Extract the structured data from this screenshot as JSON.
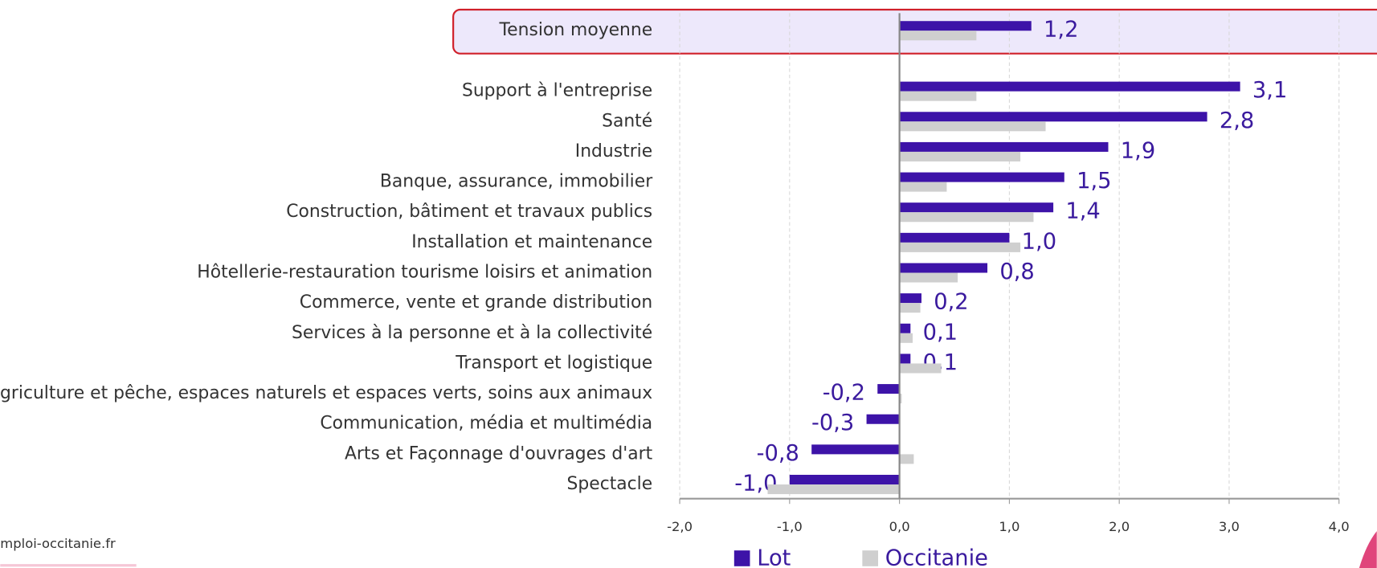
{
  "chart_data": {
    "type": "hbar",
    "categories": [
      "Tension moyenne",
      "Support à l'entreprise",
      "Santé",
      "Industrie",
      "Banque, assurance, immobilier",
      "Construction, bâtiment et travaux publics",
      "Installation et maintenance",
      "Hôtellerie-restauration tourisme loisirs et animation",
      "Commerce, vente et grande distribution",
      "Services à la personne et à la collectivité",
      "Transport et logistique",
      "Agriculture et pêche, espaces naturels et espaces verts, soins aux animaux",
      "Communication, média et multimédia",
      "Arts et Façonnage d'ouvrages d'art",
      "Spectacle"
    ],
    "series": [
      {
        "name": "Lot",
        "color": "#3d13a8",
        "values": [
          1.2,
          3.1,
          2.8,
          1.9,
          1.5,
          1.4,
          1.0,
          0.8,
          0.2,
          0.1,
          0.1,
          -0.2,
          -0.3,
          -0.8,
          -1.0
        ],
        "value_labels": [
          "1,2",
          "3,1",
          "2,8",
          "1,9",
          "1,5",
          "1,4",
          "1,0",
          "0,8",
          "0,2",
          "0,1",
          "0,1",
          "-0,2",
          "-0,3",
          "-0,8",
          "-1,0"
        ]
      },
      {
        "name": "Occitanie",
        "color": "#cfcfcf",
        "values": [
          0.7,
          0.7,
          1.33,
          1.1,
          0.43,
          1.22,
          1.1,
          0.53,
          0.19,
          0.12,
          0.38,
          0.02,
          0.0,
          0.13,
          -1.2
        ]
      }
    ],
    "xlim": [
      -2,
      4
    ],
    "xticks": [
      {
        "value": -2,
        "label": "-2,0"
      },
      {
        "value": -1,
        "label": "-1,0"
      },
      {
        "value": 0,
        "label": "0,0"
      },
      {
        "value": 1,
        "label": "1,0"
      },
      {
        "value": 2,
        "label": "2,0"
      },
      {
        "value": 3,
        "label": "3,0"
      },
      {
        "value": 4,
        "label": "4,0"
      }
    ],
    "grid": true,
    "legend": "bottom"
  },
  "footer": {
    "text": "mploi-occitanie.fr"
  }
}
